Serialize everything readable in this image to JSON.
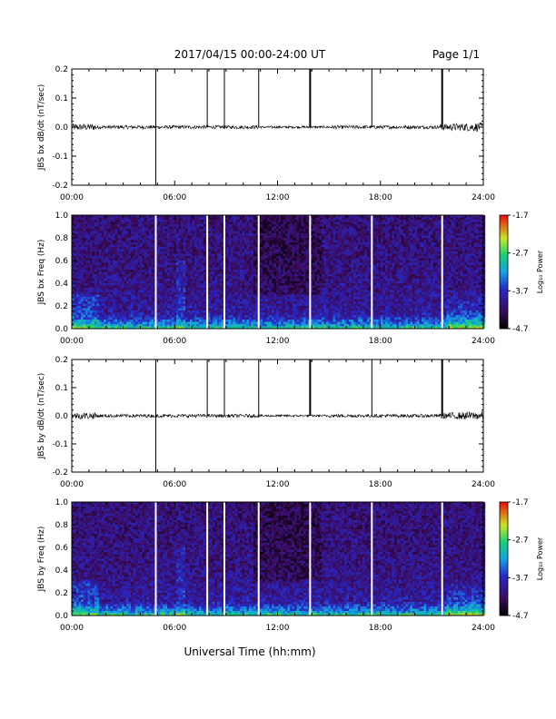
{
  "header": {
    "title": "2017/04/15   00:00-24:00 UT",
    "page": "Page 1/1"
  },
  "xlabel": "Universal Time (hh:mm)",
  "colorbar": {
    "label": "Log₁₀ Power",
    "ticks": [
      "-1.7",
      "-2.7",
      "-3.7",
      "-4.7"
    ]
  },
  "chart_data": [
    {
      "type": "line",
      "ylabel": "JBS bx dB/dt (nT/sec)",
      "ylim": [
        -0.2,
        0.2
      ],
      "yticks": [
        "0.2",
        "0.1",
        "0.0",
        "-0.1",
        "-0.2"
      ],
      "xticks": [
        "00:00",
        "06:00",
        "12:00",
        "18:00",
        "24:00"
      ],
      "xlim": [
        0,
        24
      ],
      "baseline": 0.0,
      "spike_hours": [
        4.9,
        7.9,
        8.9,
        10.9,
        13.9,
        17.5,
        21.6
      ],
      "noise_note": "larger fluctuation near 00:00-01:00 and 22:00-24:00"
    },
    {
      "type": "heatmap",
      "ylabel": "JBS bx Freq (Hz)",
      "ylim": [
        0.0,
        1.0
      ],
      "yticks": [
        "1.0",
        "0.8",
        "0.6",
        "0.4",
        "0.2",
        "0.0"
      ],
      "xticks": [
        "00:00",
        "06:00",
        "12:00",
        "18:00",
        "24:00"
      ],
      "xlim": [
        0,
        24
      ],
      "zlim": [
        -4.7,
        -1.7
      ],
      "gap_hours": [
        4.9,
        7.9,
        8.9,
        10.9,
        13.9,
        17.5,
        21.6
      ]
    },
    {
      "type": "line",
      "ylabel": "JBS by dB/dt (nT/sec)",
      "ylim": [
        -0.2,
        0.2
      ],
      "yticks": [
        "0.2",
        "0.1",
        "0.0",
        "-0.1",
        "-0.2"
      ],
      "xticks": [
        "00:00",
        "06:00",
        "12:00",
        "18:00",
        "24:00"
      ],
      "xlim": [
        0,
        24
      ],
      "baseline": 0.0,
      "spike_hours": [
        4.9,
        7.9,
        8.9,
        10.9,
        13.9,
        17.5,
        21.6
      ],
      "noise_note": "larger fluctuation near 00:00-02:00 and 20:00-24:00"
    },
    {
      "type": "heatmap",
      "ylabel": "JBS by Freq (Hz)",
      "ylim": [
        0.0,
        1.0
      ],
      "yticks": [
        "1.0",
        "0.8",
        "0.6",
        "0.4",
        "0.2",
        "0.0"
      ],
      "xticks": [
        "00:00",
        "06:00",
        "12:00",
        "18:00",
        "24:00"
      ],
      "xlim": [
        0,
        24
      ],
      "zlim": [
        -4.7,
        -1.7
      ],
      "gap_hours": [
        4.9,
        7.9,
        8.9,
        10.9,
        13.9,
        17.5,
        21.6
      ]
    }
  ]
}
